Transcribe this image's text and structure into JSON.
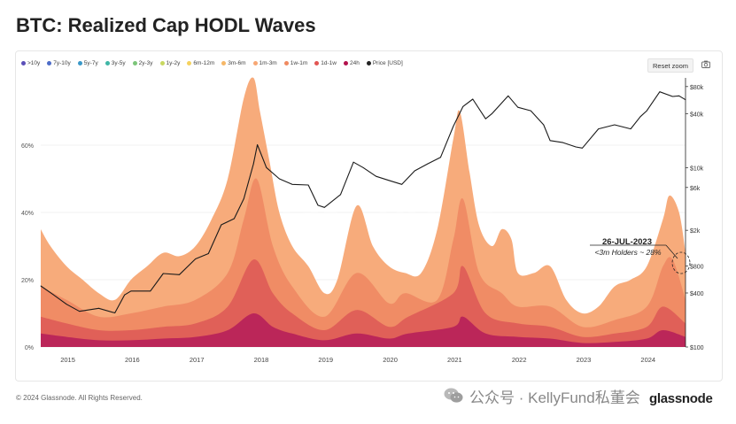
{
  "title": "BTC: Realized Cap HODL Waves",
  "legend": [
    {
      "label": ">10y",
      "color": "#5b4fb8"
    },
    {
      "label": "7y-10y",
      "color": "#4d6cc8"
    },
    {
      "label": "5y-7y",
      "color": "#3a98c8"
    },
    {
      "label": "3y-5y",
      "color": "#3fb6a6"
    },
    {
      "label": "2y-3y",
      "color": "#7cc57a"
    },
    {
      "label": "1y-2y",
      "color": "#c8d860"
    },
    {
      "label": "6m-12m",
      "color": "#f5d25e"
    },
    {
      "label": "3m-6m",
      "color": "#f6b767"
    },
    {
      "label": "1m-3m",
      "color": "#f7a774"
    },
    {
      "label": "1w-1m",
      "color": "#f08a60"
    },
    {
      "label": "1d-1w",
      "color": "#e25552"
    },
    {
      "label": "24h",
      "color": "#b3124d"
    },
    {
      "label": "Price [USD]",
      "color": "#222222"
    }
  ],
  "controls": {
    "reset_zoom": "Reset zoom"
  },
  "annotation": {
    "date": "26-JUL-2023",
    "text": "<3m Holders ~ 28%"
  },
  "footer": "© 2024 Glassnode. All Rights Reserved.",
  "watermark": "glassnode",
  "wechat": "公众号 · KellyFund私董会",
  "brand": "glassnode",
  "colors": {
    "price_line": "#1a1a1a",
    "band_1m_3m": "#f7a774",
    "band_1w_1m": "#ee8863",
    "band_1d_1w": "#de5b57",
    "band_24h": "#b7205a"
  },
  "chart_data": {
    "type": "area",
    "x_ticks": [
      "2015",
      "2016",
      "2017",
      "2018",
      "2019",
      "2020",
      "2021",
      "2022",
      "2023",
      "2024"
    ],
    "y_left_ticks": [
      "0%",
      "20%",
      "40%",
      "60%"
    ],
    "y_right_ticks": [
      "$100",
      "$400",
      "$800",
      "$2k",
      "$6k",
      "$10k",
      "$40k",
      "$80k"
    ],
    "y_left_range": [
      0,
      80
    ],
    "y_right_range": [
      100,
      100000
    ],
    "y_right_scale": "log",
    "x_range": [
      2014.6,
      2024.6
    ],
    "series": [
      {
        "name": "1m-3m",
        "x": [
          2014.6,
          2014.75,
          2015.0,
          2015.25,
          2015.5,
          2015.75,
          2016.0,
          2016.25,
          2016.5,
          2016.75,
          2017.0,
          2017.25,
          2017.5,
          2017.75,
          2017.9,
          2018.0,
          2018.15,
          2018.3,
          2018.5,
          2018.75,
          2019.0,
          2019.2,
          2019.5,
          2019.75,
          2020.0,
          2020.25,
          2020.5,
          2020.75,
          2021.0,
          2021.1,
          2021.25,
          2021.4,
          2021.6,
          2021.75,
          2021.9,
          2022.0,
          2022.25,
          2022.5,
          2022.75,
          2023.0,
          2023.25,
          2023.5,
          2023.75,
          2024.0,
          2024.25,
          2024.35,
          2024.5,
          2024.6
        ],
        "values": [
          35,
          30,
          24,
          20,
          16,
          14,
          20,
          24,
          28,
          27,
          30,
          38,
          50,
          74,
          80,
          70,
          55,
          40,
          30,
          24,
          16,
          20,
          42,
          30,
          24,
          22,
          22,
          35,
          62,
          70,
          52,
          36,
          30,
          35,
          32,
          22,
          22,
          24,
          14,
          10,
          12,
          18,
          20,
          24,
          38,
          45,
          40,
          28
        ]
      },
      {
        "name": "1w-1m",
        "x": [
          2014.6,
          2015.0,
          2015.5,
          2016.0,
          2016.5,
          2017.0,
          2017.5,
          2017.75,
          2017.95,
          2018.2,
          2018.5,
          2019.0,
          2019.5,
          2020.0,
          2020.25,
          2020.75,
          2021.0,
          2021.15,
          2021.4,
          2021.75,
          2022.0,
          2022.5,
          2023.0,
          2023.5,
          2024.0,
          2024.25,
          2024.4,
          2024.6
        ],
        "values": [
          18,
          14,
          9,
          10,
          12,
          14,
          22,
          38,
          50,
          30,
          18,
          9,
          22,
          13,
          16,
          14,
          32,
          44,
          22,
          16,
          12,
          12,
          6,
          8,
          12,
          24,
          26,
          14
        ]
      },
      {
        "name": "1d-1w",
        "x": [
          2014.6,
          2015.0,
          2015.5,
          2016.0,
          2016.5,
          2017.0,
          2017.5,
          2017.9,
          2018.2,
          2018.5,
          2019.0,
          2019.5,
          2020.0,
          2020.3,
          2021.0,
          2021.15,
          2021.5,
          2022.0,
          2022.5,
          2023.0,
          2023.5,
          2024.0,
          2024.25,
          2024.6
        ],
        "values": [
          9,
          7,
          5,
          5,
          6,
          7,
          12,
          26,
          16,
          10,
          5,
          11,
          6,
          9,
          16,
          24,
          10,
          7,
          6,
          3,
          4,
          6,
          12,
          7
        ]
      },
      {
        "name": "24h",
        "x": [
          2014.6,
          2015.0,
          2015.5,
          2016.0,
          2016.5,
          2017.0,
          2017.5,
          2017.9,
          2018.2,
          2018.5,
          2019.0,
          2019.5,
          2020.0,
          2020.3,
          2021.0,
          2021.15,
          2021.5,
          2022.0,
          2022.5,
          2023.0,
          2023.5,
          2024.0,
          2024.25,
          2024.6
        ],
        "values": [
          4,
          3,
          2,
          2,
          2.5,
          3,
          5,
          10,
          6,
          4,
          2,
          4,
          2.5,
          4,
          6,
          9,
          4,
          3,
          2.5,
          1.2,
          1.5,
          2.5,
          5,
          3
        ]
      },
      {
        "name": "Price [USD]",
        "x": [
          2014.6,
          2014.8,
          2015.0,
          2015.2,
          2015.5,
          2015.75,
          2015.9,
          2016.0,
          2016.3,
          2016.5,
          2016.75,
          2017.0,
          2017.2,
          2017.4,
          2017.6,
          2017.75,
          2017.9,
          2017.96,
          2018.1,
          2018.3,
          2018.5,
          2018.75,
          2018.9,
          2019.0,
          2019.25,
          2019.45,
          2019.6,
          2019.8,
          2020.0,
          2020.2,
          2020.4,
          2020.6,
          2020.8,
          2021.0,
          2021.15,
          2021.3,
          2021.5,
          2021.6,
          2021.85,
          2022.0,
          2022.2,
          2022.4,
          2022.5,
          2022.7,
          2022.9,
          2023.0,
          2023.25,
          2023.5,
          2023.75,
          2023.9,
          2024.0,
          2024.2,
          2024.4,
          2024.5,
          2024.6
        ],
        "values": [
          480,
          380,
          300,
          250,
          270,
          240,
          380,
          420,
          420,
          660,
          640,
          960,
          1100,
          2300,
          2700,
          4500,
          11000,
          18000,
          10000,
          7500,
          6500,
          6400,
          3800,
          3600,
          5000,
          11500,
          10000,
          8000,
          7200,
          6500,
          9200,
          11000,
          13000,
          29000,
          48000,
          58000,
          35000,
          40000,
          63000,
          47000,
          43000,
          30000,
          20000,
          19000,
          17000,
          16500,
          27000,
          30000,
          27000,
          37000,
          43000,
          70000,
          62000,
          63000,
          57000
        ]
      }
    ]
  }
}
